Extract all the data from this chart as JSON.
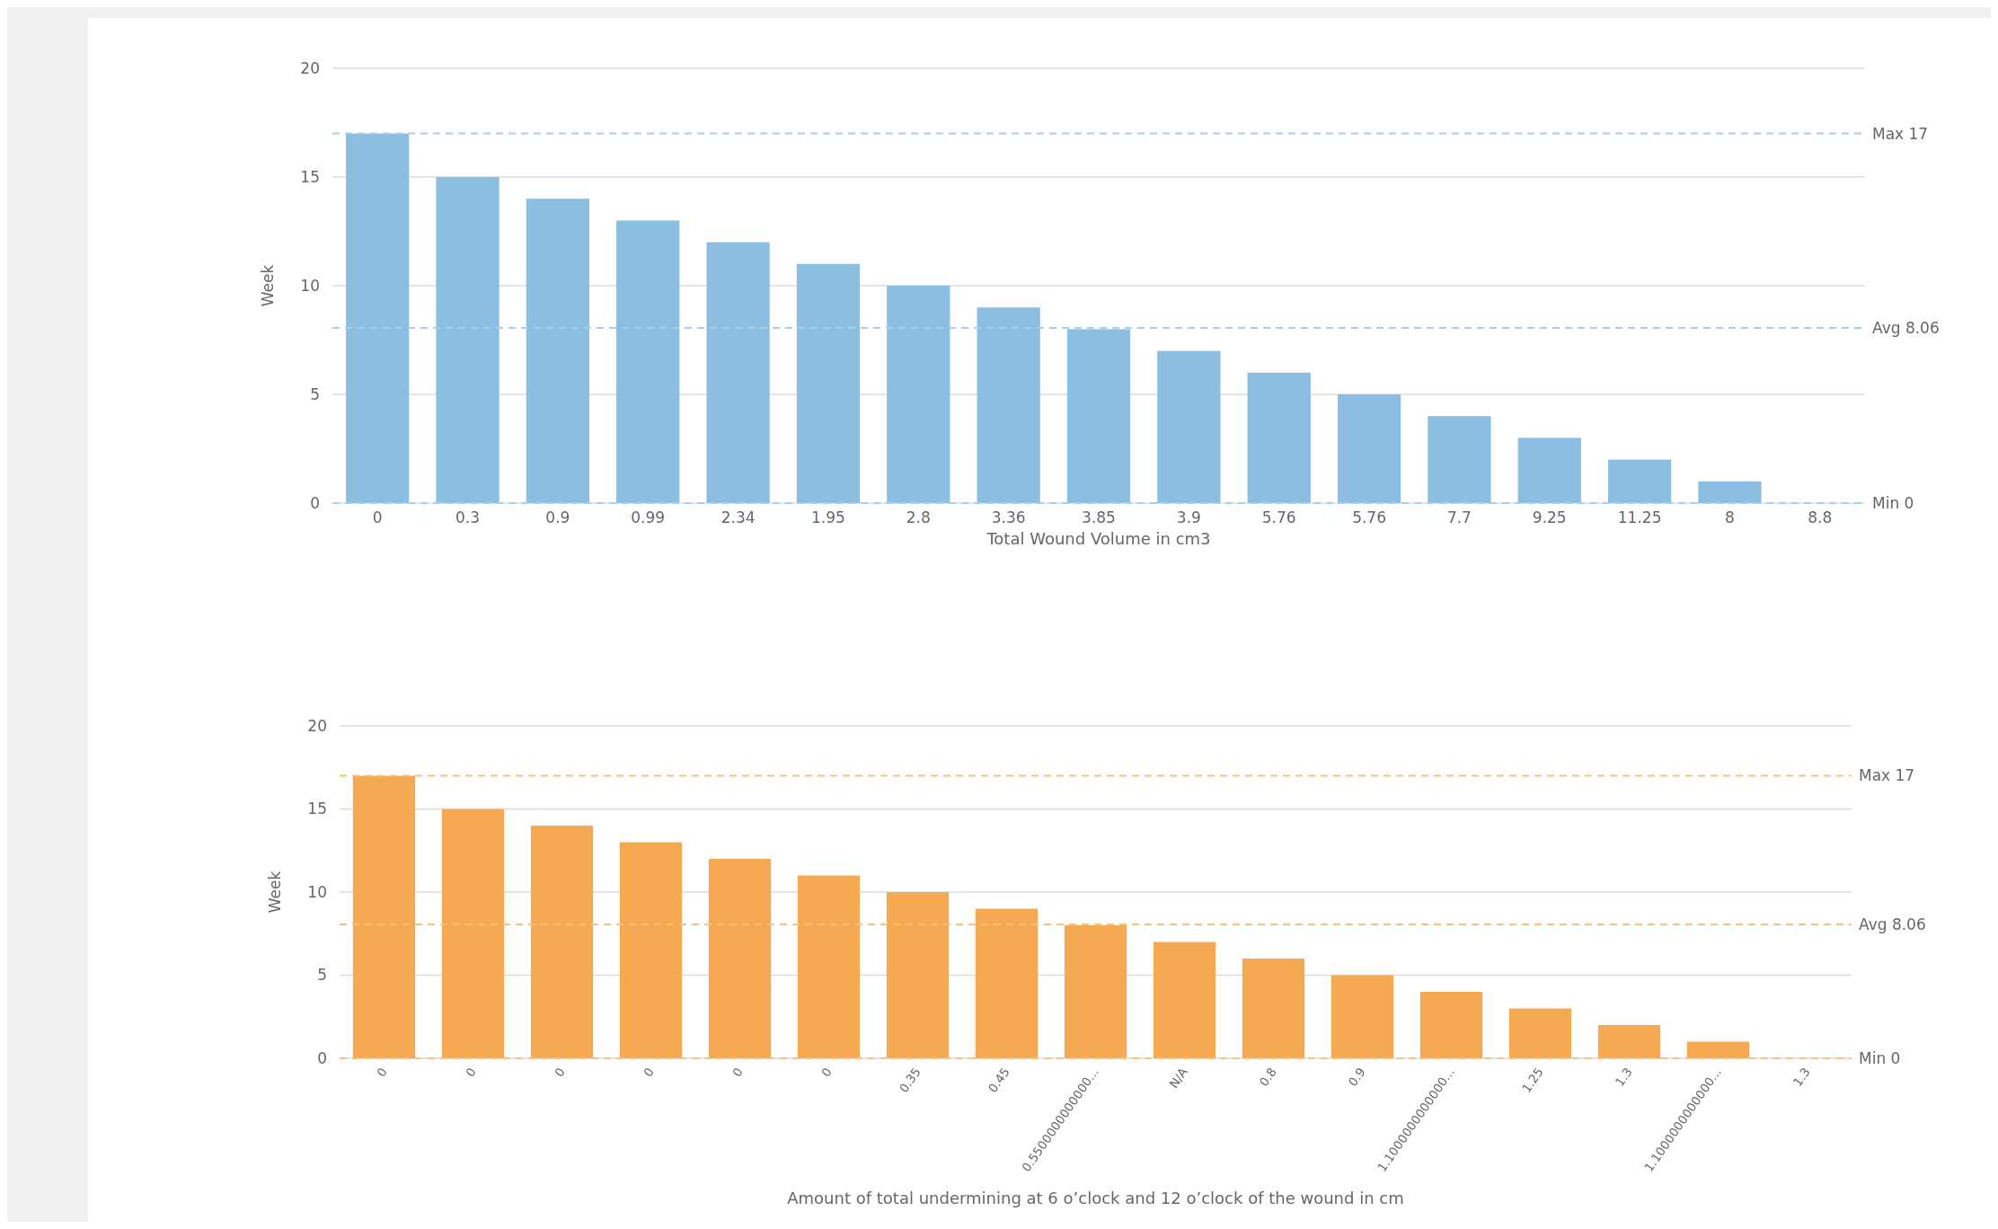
{
  "chart_data": [
    {
      "type": "bar",
      "xlabel": "Total Wound Volume in cm3",
      "ylabel": "Week",
      "categories": [
        "0",
        "0.3",
        "0.9",
        "0.99",
        "2.34",
        "1.95",
        "2.8",
        "3.36",
        "3.85",
        "3.9",
        "5.76",
        "5.76",
        "7.7",
        "9.25",
        "11.25",
        "8",
        "8.8"
      ],
      "values": [
        17,
        15,
        14,
        13,
        12,
        11,
        10,
        9,
        8,
        7,
        6,
        5,
        4,
        3,
        2,
        1,
        0
      ],
      "color": "#8bbee0",
      "ylim": [
        0,
        20
      ],
      "yticks": [
        0,
        5,
        10,
        15,
        20
      ],
      "grid": "y",
      "ref_lines": [
        {
          "axis": "y",
          "value": 17,
          "label": "Max 17",
          "color": "#a9cfe8",
          "line_style": "dashed"
        },
        {
          "axis": "y",
          "value": 8.06,
          "label": "Avg 8.06",
          "color": "#a9cfe8",
          "line_style": "dashed"
        },
        {
          "axis": "y",
          "value": 0,
          "label": "Min 0",
          "color": "#a9cfe8",
          "line_style": "dashed"
        }
      ]
    },
    {
      "type": "bar",
      "xlabel": "Amount of total undermining at 6 o’clock and 12 o’clock of the wound in cm",
      "ylabel": "Week",
      "categories": [
        "0",
        "0",
        "0",
        "0",
        "0",
        "0",
        "0.35",
        "0.45",
        "0.5500000000000...",
        "N/A",
        "0.8",
        "0.9",
        "1.1000000000000...",
        "1.25",
        "1.3",
        "1.1000000000000...",
        "1.3"
      ],
      "values": [
        17,
        15,
        14,
        13,
        12,
        11,
        10,
        9,
        8,
        7,
        6,
        5,
        4,
        3,
        2,
        1,
        0
      ],
      "color": "#f5a952",
      "ylim": [
        0,
        20
      ],
      "yticks": [
        0,
        5,
        10,
        15,
        20
      ],
      "grid": "y",
      "ref_lines": [
        {
          "axis": "y",
          "value": 17,
          "label": "Max 17",
          "color": "#f7c27f",
          "line_style": "dashed"
        },
        {
          "axis": "y",
          "value": 8.06,
          "label": "Avg 8.06",
          "color": "#f7c27f",
          "line_style": "dashed"
        },
        {
          "axis": "y",
          "value": 0,
          "label": "Min 0",
          "color": "#f7c27f",
          "line_style": "dashed"
        }
      ]
    }
  ]
}
